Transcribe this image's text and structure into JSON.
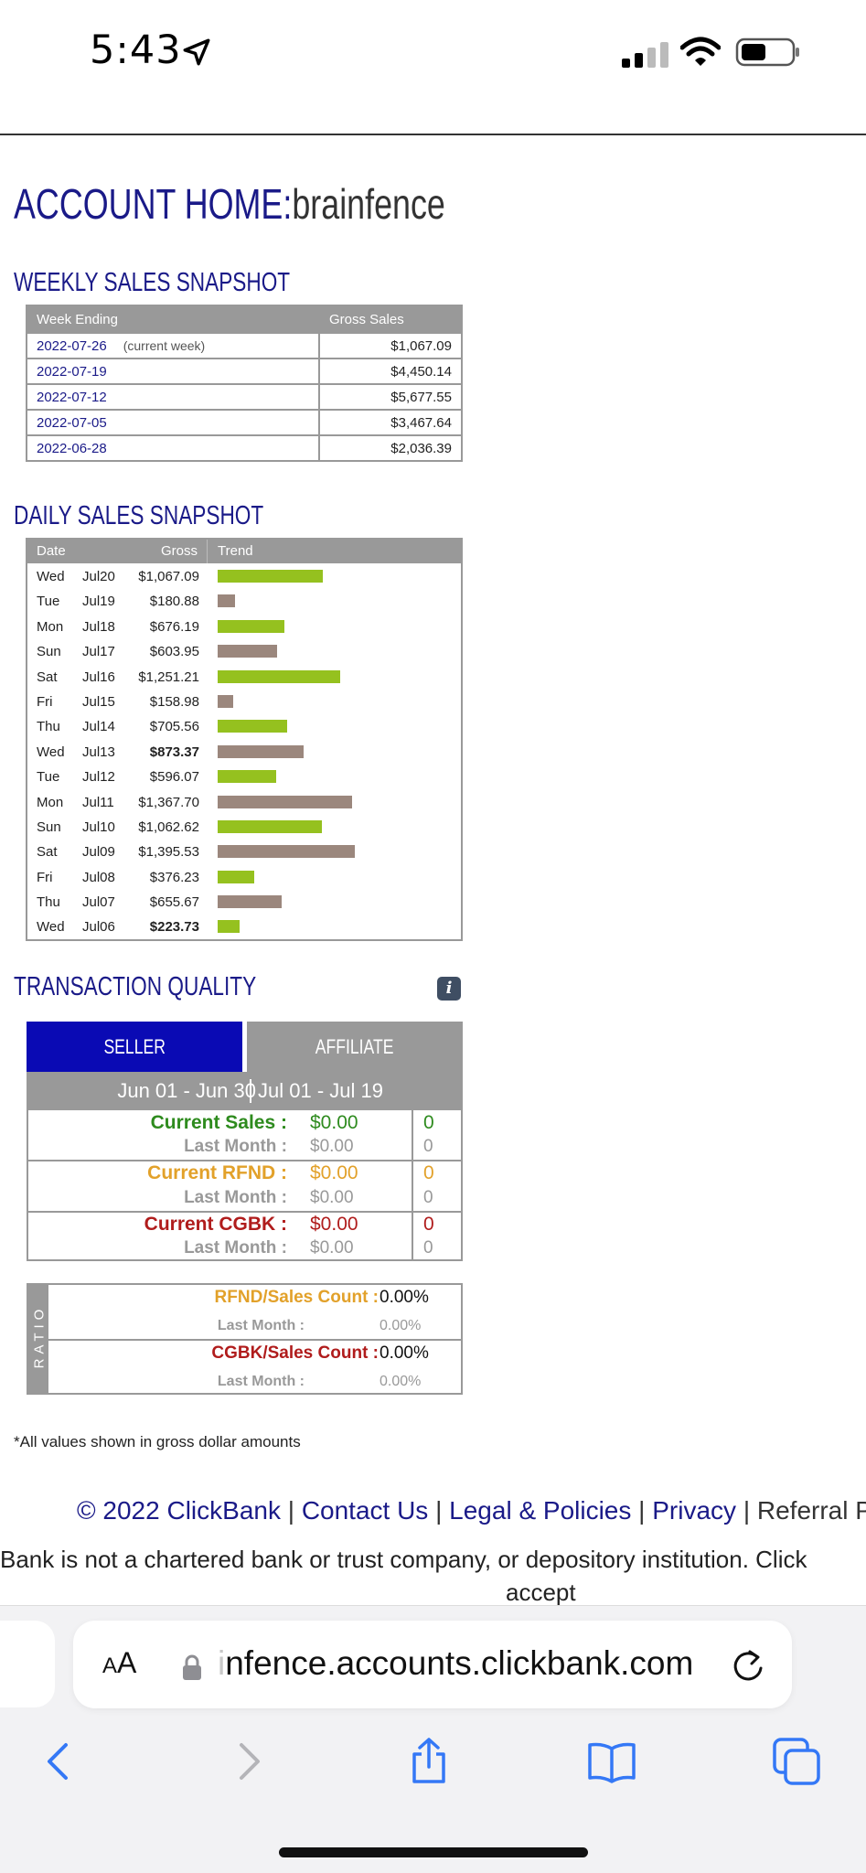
{
  "status_bar": {
    "time": "5:43"
  },
  "header": {
    "title": "ACCOUNT HOME:",
    "username": "brainfence"
  },
  "weekly": {
    "title": "WEEKLY SALES SNAPSHOT",
    "col_week": "Week Ending",
    "col_gross": "Gross Sales",
    "rows": [
      {
        "week": "2022-07-26",
        "note": "(current week)",
        "gross": "$1,067.09"
      },
      {
        "week": "2022-07-19",
        "note": "",
        "gross": "$4,450.14"
      },
      {
        "week": "2022-07-12",
        "note": "",
        "gross": "$5,677.55"
      },
      {
        "week": "2022-07-05",
        "note": "",
        "gross": "$3,467.64"
      },
      {
        "week": "2022-06-28",
        "note": "",
        "gross": "$2,036.39"
      }
    ]
  },
  "daily": {
    "title": "DAILY SALES SNAPSHOT",
    "col_date": "Date",
    "col_gross": "Gross",
    "col_trend": "Trend",
    "rows": [
      {
        "day": "Wed",
        "date": "Jul20",
        "gross": "$1,067.09",
        "value": 1067.09,
        "bold": false,
        "color": "green"
      },
      {
        "day": "Tue",
        "date": "Jul19",
        "gross": "$180.88",
        "value": 180.88,
        "bold": false,
        "color": "brown"
      },
      {
        "day": "Mon",
        "date": "Jul18",
        "gross": "$676.19",
        "value": 676.19,
        "bold": false,
        "color": "green"
      },
      {
        "day": "Sun",
        "date": "Jul17",
        "gross": "$603.95",
        "value": 603.95,
        "bold": false,
        "color": "brown"
      },
      {
        "day": "Sat",
        "date": "Jul16",
        "gross": "$1,251.21",
        "value": 1251.21,
        "bold": false,
        "color": "green"
      },
      {
        "day": "Fri",
        "date": "Jul15",
        "gross": "$158.98",
        "value": 158.98,
        "bold": false,
        "color": "brown"
      },
      {
        "day": "Thu",
        "date": "Jul14",
        "gross": "$705.56",
        "value": 705.56,
        "bold": false,
        "color": "green"
      },
      {
        "day": "Wed",
        "date": "Jul13",
        "gross": "$873.37",
        "value": 873.37,
        "bold": true,
        "color": "brown"
      },
      {
        "day": "Tue",
        "date": "Jul12",
        "gross": "$596.07",
        "value": 596.07,
        "bold": false,
        "color": "green"
      },
      {
        "day": "Mon",
        "date": "Jul11",
        "gross": "$1,367.70",
        "value": 1367.7,
        "bold": false,
        "color": "brown"
      },
      {
        "day": "Sun",
        "date": "Jul10",
        "gross": "$1,062.62",
        "value": 1062.62,
        "bold": false,
        "color": "green"
      },
      {
        "day": "Sat",
        "date": "Jul09",
        "gross": "$1,395.53",
        "value": 1395.53,
        "bold": false,
        "color": "brown"
      },
      {
        "day": "Fri",
        "date": "Jul08",
        "gross": "$376.23",
        "value": 376.23,
        "bold": false,
        "color": "green"
      },
      {
        "day": "Thu",
        "date": "Jul07",
        "gross": "$655.67",
        "value": 655.67,
        "bold": false,
        "color": "brown"
      },
      {
        "day": "Wed",
        "date": "Jul06",
        "gross": "$223.73",
        "value": 223.73,
        "bold": true,
        "color": "green"
      }
    ]
  },
  "quality": {
    "title": "TRANSACTION QUALITY",
    "tab_seller": "SELLER",
    "tab_affiliate": "AFFILIATE",
    "period_1": "Jun 01 - Jun 30",
    "period_2": "Jul 01 - Jul 19",
    "rows": [
      {
        "label": "Current Sales :",
        "value": "$0.00",
        "count": "0",
        "sub_label": "Last Month :",
        "sub_value": "$0.00",
        "sub_count": "0",
        "color": "#2e8b1e"
      },
      {
        "label": "Current RFND :",
        "value": "$0.00",
        "count": "0",
        "sub_label": "Last Month :",
        "sub_value": "$0.00",
        "sub_count": "0",
        "color": "#e2a12a"
      },
      {
        "label": "Current CGBK :",
        "value": "$0.00",
        "count": "0",
        "sub_label": "Last Month :",
        "sub_value": "$0.00",
        "sub_count": "0",
        "color": "#b01c1c"
      }
    ]
  },
  "ratio": {
    "side_label": "RATIO",
    "rows": [
      {
        "label": "RFND/Sales Count :",
        "value": "0.00%",
        "sub_label": "Last Month :",
        "sub_value": "0.00%",
        "color": "#e2a12a"
      },
      {
        "label": "CGBK/Sales Count :",
        "value": "0.00%",
        "sub_label": "Last Month :",
        "sub_value": "0.00%",
        "color": "#b01c1c"
      }
    ]
  },
  "footnote": "*All values shown in gross dollar amounts",
  "footer": {
    "copyright": "© 2022 ClickBank",
    "contact": "Contact Us",
    "legal": "Legal & Policies",
    "privacy": "Privacy",
    "referral": "Referral Pro",
    "sep": "|",
    "disclaimer": "Bank is not a chartered bank or trust company, or depository institution. Click",
    "disclaimer_cont": "accept"
  },
  "browser": {
    "aa": "AA",
    "url": "nfence.accounts.clickbank.com"
  },
  "colors": {
    "navy": "#1a1a88",
    "green_bar": "#95c11f",
    "brown_bar": "#9b877d",
    "seller_tab": "#0a0ab4",
    "ios_blue": "#3478f6"
  }
}
